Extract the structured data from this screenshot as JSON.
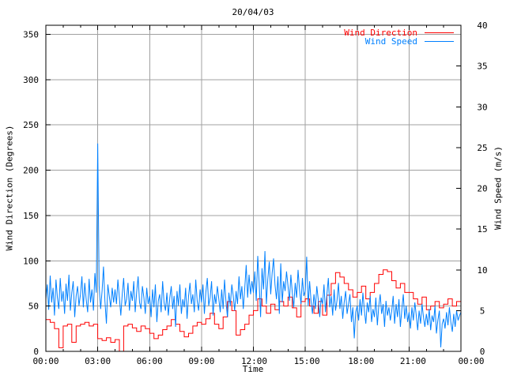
{
  "chart_data": {
    "type": "line",
    "title": "20/04/03",
    "xlabel": "Time",
    "ylabel_left": "Wind Direction (Degrees)",
    "ylabel_right": "Wind Speed (m/s)",
    "x_axis": {
      "unit": "hours",
      "range": [
        0,
        24
      ],
      "major_tick_hours": 3,
      "minor_tick_hours": 1,
      "tick_labels": [
        "00:00",
        "03:00",
        "06:00",
        "09:00",
        "12:00",
        "15:00",
        "18:00",
        "21:00",
        "00:00"
      ]
    },
    "y_left_axis": {
      "range": [
        0,
        360
      ],
      "tick_step": 50,
      "tick_labels": [
        "0",
        "50",
        "100",
        "150",
        "200",
        "250",
        "300",
        "350"
      ]
    },
    "y_right_axis": {
      "range": [
        0,
        40
      ],
      "tick_step": 5,
      "tick_labels": [
        "0",
        "5",
        "10",
        "15",
        "20",
        "25",
        "30",
        "35",
        "40"
      ]
    },
    "grid": {
      "show": true,
      "color": "#a0a0a0"
    },
    "border_color": "#000000",
    "legend_position": "top-right-inside",
    "series": [
      {
        "name": "Wind Direction",
        "color": "#ff0000",
        "axis": "left",
        "style": "steps",
        "sample_interval_minutes": 15,
        "values": [
          35,
          32,
          25,
          4,
          28,
          30,
          10,
          28,
          30,
          32,
          28,
          30,
          14,
          12,
          15,
          10,
          13,
          0,
          28,
          30,
          26,
          22,
          28,
          25,
          20,
          14,
          18,
          24,
          28,
          35,
          30,
          22,
          16,
          20,
          28,
          32,
          30,
          36,
          42,
          30,
          25,
          38,
          55,
          45,
          18,
          24,
          30,
          40,
          45,
          58,
          50,
          42,
          52,
          46,
          55,
          50,
          60,
          48,
          38,
          55,
          58,
          50,
          42,
          55,
          40,
          62,
          75,
          87,
          82,
          75,
          68,
          60,
          65,
          72,
          58,
          65,
          75,
          85,
          90,
          88,
          78,
          70,
          75,
          65,
          65,
          58,
          52,
          60,
          46,
          50,
          55,
          48,
          52,
          58,
          50,
          55,
          57
        ]
      },
      {
        "name": "Wind Speed",
        "color": "#0080ff",
        "axis": "right",
        "style": "line",
        "sample_interval_minutes": 5,
        "values": [
          6.4,
          8.2,
          5.1,
          9.3,
          6.0,
          7.8,
          4.4,
          8.8,
          6.6,
          5.2,
          9.0,
          6.1,
          7.4,
          4.6,
          8.3,
          6.2,
          9.4,
          5.0,
          7.2,
          8.6,
          4.2,
          6.8,
          8.0,
          5.6,
          7.0,
          9.2,
          5.4,
          8.4,
          6.4,
          4.8,
          8.9,
          6.0,
          7.6,
          5.0,
          9.6,
          7.2,
          25.5,
          8.0,
          5.2,
          7.4,
          10.4,
          6.2,
          3.4,
          8.2,
          6.8,
          5.4,
          7.8,
          6.0,
          7.6,
          5.8,
          8.8,
          6.6,
          4.4,
          7.0,
          9.0,
          5.6,
          6.4,
          8.4,
          5.0,
          7.4,
          6.2,
          8.6,
          4.8,
          7.2,
          9.2,
          6.0,
          5.2,
          8.0,
          6.6,
          4.6,
          7.8,
          5.8,
          6.8,
          4.2,
          7.6,
          5.4,
          8.2,
          3.6,
          6.2,
          7.0,
          4.8,
          8.6,
          6.0,
          5.0,
          7.2,
          4.4,
          6.6,
          8.0,
          5.2,
          6.8,
          3.0,
          7.4,
          5.6,
          8.2,
          4.6,
          6.4,
          5.4,
          7.8,
          4.0,
          6.8,
          8.4,
          5.8,
          7.0,
          4.8,
          8.8,
          6.2,
          5.0,
          7.6,
          6.0,
          8.2,
          4.6,
          7.2,
          9.0,
          5.6,
          6.6,
          8.6,
          4.4,
          7.0,
          5.8,
          8.0,
          6.4,
          4.8,
          7.6,
          5.2,
          8.8,
          6.0,
          4.2,
          7.2,
          5.6,
          8.2,
          6.8,
          5.0,
          7.4,
          5.8,
          9.2,
          6.4,
          8.0,
          5.2,
          7.8,
          10.6,
          6.6,
          9.4,
          7.0,
          8.6,
          7.2,
          9.8,
          6.2,
          11.7,
          8.4,
          4.2,
          10.2,
          7.6,
          12.3,
          5.8,
          8.8,
          11.0,
          7.0,
          9.6,
          11.4,
          8.2,
          6.4,
          9.2,
          4.6,
          10.8,
          6.0,
          8.6,
          7.4,
          9.8,
          8.0,
          6.2,
          9.4,
          7.2,
          5.4,
          8.4,
          6.6,
          10.0,
          7.6,
          5.8,
          9.0,
          6.8,
          7.4,
          11.6,
          5.6,
          8.6,
          6.2,
          4.6,
          7.0,
          5.2,
          8.0,
          6.4,
          4.2,
          6.6,
          5.8,
          8.2,
          4.8,
          7.0,
          9.0,
          5.4,
          6.8,
          4.4,
          7.6,
          5.0,
          6.2,
          8.4,
          5.2,
          6.8,
          4.0,
          6.0,
          7.4,
          4.6,
          5.8,
          7.0,
          3.6,
          5.4,
          1.6,
          4.8,
          5.6,
          3.8,
          6.4,
          4.4,
          7.2,
          5.0,
          3.4,
          6.0,
          4.8,
          6.8,
          3.6,
          5.2,
          4.2,
          6.6,
          3.2,
          5.6,
          7.0,
          4.6,
          5.8,
          3.0,
          6.2,
          4.4,
          5.4,
          3.8,
          5.0,
          6.8,
          3.4,
          5.8,
          4.2,
          6.4,
          3.0,
          5.2,
          7.0,
          4.0,
          5.6,
          3.6,
          4.8,
          2.8,
          5.4,
          3.8,
          6.0,
          4.4,
          2.6,
          5.0,
          3.4,
          5.8,
          4.2,
          3.0,
          4.6,
          3.2,
          5.2,
          2.6,
          4.4,
          3.6,
          5.6,
          2.2,
          3.8,
          5.0,
          0.5,
          3.4,
          4.0,
          2.8,
          4.8,
          3.2,
          5.4,
          3.6,
          2.4,
          4.6,
          3.0,
          5.0,
          3.8,
          4.4,
          4.8
        ]
      }
    ]
  }
}
